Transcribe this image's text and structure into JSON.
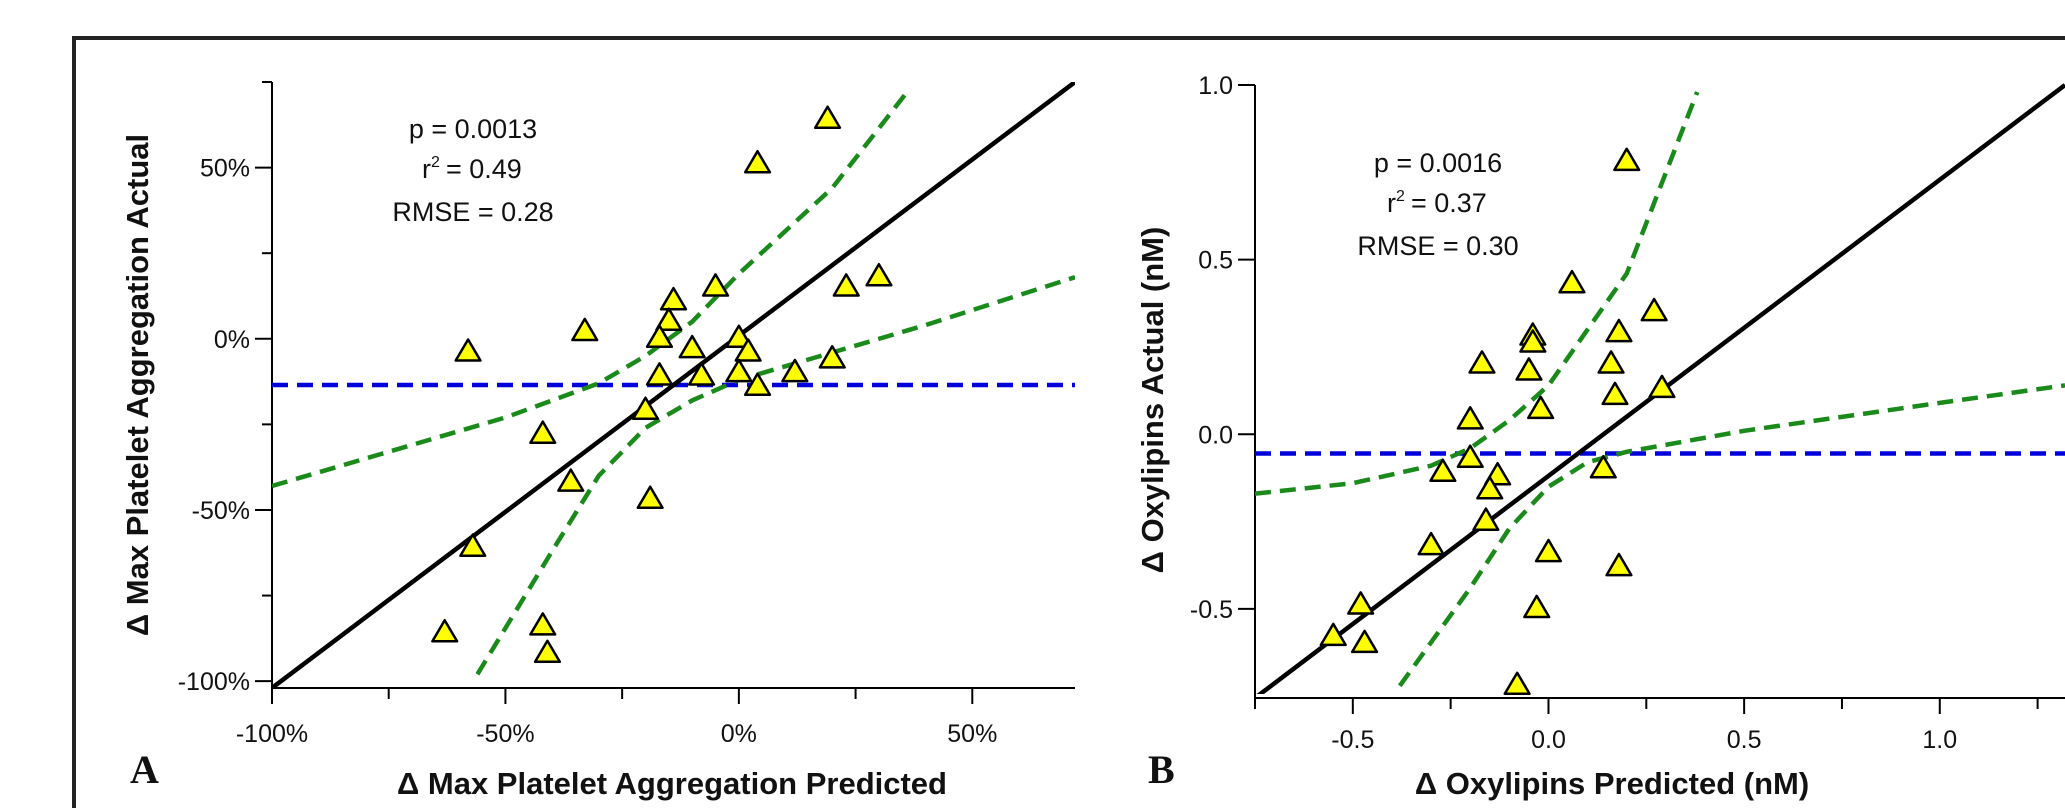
{
  "panels": [
    {
      "label": "A"
    },
    {
      "label": "B"
    }
  ],
  "chart_data": [
    {
      "type": "scatter",
      "panel": "A",
      "xlabel": "Δ Max Platelet Aggregation Predicted",
      "ylabel": "Δ Max Platelet Aggregation Actual",
      "xlim": [
        -1.0,
        0.72
      ],
      "ylim": [
        -1.02,
        0.75
      ],
      "x_ticks": [
        {
          "value": -1.0,
          "label": "-100%"
        },
        {
          "value": -0.5,
          "label": "-50%"
        },
        {
          "value": 0.0,
          "label": "0%"
        },
        {
          "value": 0.5,
          "label": "50%"
        }
      ],
      "y_ticks": [
        {
          "value": -1.0,
          "label": "-100%"
        },
        {
          "value": -0.5,
          "label": "-50%"
        },
        {
          "value": 0.0,
          "label": "0%"
        },
        {
          "value": 0.5,
          "label": "50%"
        }
      ],
      "annotations": {
        "p": "p = 0.0013",
        "r2_value": "= 0.49",
        "rmse": "RMSE = 0.28"
      },
      "series": [
        {
          "marker": "triangle",
          "color": "#ffff00",
          "points": [
            [
              0.19,
              0.64
            ],
            [
              0.04,
              0.51
            ],
            [
              0.3,
              0.18
            ],
            [
              0.23,
              0.15
            ],
            [
              -0.05,
              0.15
            ],
            [
              -0.14,
              0.11
            ],
            [
              -0.15,
              0.05
            ],
            [
              -0.33,
              0.02
            ],
            [
              -0.17,
              0.0
            ],
            [
              0.0,
              0.0
            ],
            [
              -0.1,
              -0.03
            ],
            [
              -0.58,
              -0.04
            ],
            [
              0.02,
              -0.04
            ],
            [
              0.2,
              -0.06
            ],
            [
              0.12,
              -0.1
            ],
            [
              -0.17,
              -0.11
            ],
            [
              0.0,
              -0.1
            ],
            [
              -0.08,
              -0.11
            ],
            [
              0.04,
              -0.14
            ],
            [
              -0.2,
              -0.21
            ],
            [
              -0.42,
              -0.28
            ],
            [
              -0.36,
              -0.42
            ],
            [
              -0.19,
              -0.47
            ],
            [
              -0.57,
              -0.61
            ],
            [
              -0.42,
              -0.84
            ],
            [
              -0.63,
              -0.86
            ],
            [
              -0.41,
              -0.92
            ]
          ]
        }
      ],
      "lines": {
        "fit": {
          "color": "#000000",
          "style": "solid",
          "points": [
            [
              -1.0,
              -1.02
            ],
            [
              0.72,
              0.75
            ]
          ]
        },
        "mean": {
          "color": "#0000dd",
          "style": "dashed",
          "y": -0.135
        },
        "ci_upper": {
          "color": "#1a8a1a",
          "style": "dashed",
          "points": [
            [
              -1.0,
              -0.43
            ],
            [
              -0.5,
              -0.23
            ],
            [
              -0.3,
              -0.13
            ],
            [
              -0.2,
              -0.05
            ],
            [
              -0.1,
              0.05
            ],
            [
              0.0,
              0.19
            ],
            [
              0.2,
              0.44
            ],
            [
              0.36,
              0.72
            ]
          ]
        },
        "ci_lower": {
          "color": "#1a8a1a",
          "style": "dashed",
          "points": [
            [
              -0.56,
              -0.98
            ],
            [
              -0.4,
              -0.62
            ],
            [
              -0.3,
              -0.4
            ],
            [
              -0.2,
              -0.26
            ],
            [
              -0.1,
              -0.18
            ],
            [
              0.0,
              -0.12
            ],
            [
              0.2,
              -0.04
            ],
            [
              0.4,
              0.04
            ],
            [
              0.72,
              0.18
            ]
          ]
        }
      }
    },
    {
      "type": "scatter",
      "panel": "B",
      "xlabel": "Δ Oxylipins Predicted (nM)",
      "ylabel": "Δ Oxylipins Actual (nM)",
      "xlim": [
        -0.75,
        1.32
      ],
      "ylim": [
        -0.755,
        1.0
      ],
      "x_ticks": [
        {
          "value": -0.5,
          "label": "-0.5"
        },
        {
          "value": 0.0,
          "label": "0.0"
        },
        {
          "value": 0.5,
          "label": "0.5"
        },
        {
          "value": 1.0,
          "label": "1.0"
        }
      ],
      "y_ticks": [
        {
          "value": -0.5,
          "label": "-0.5"
        },
        {
          "value": 0.0,
          "label": "0.0"
        },
        {
          "value": 0.5,
          "label": "0.5"
        },
        {
          "value": 1.0,
          "label": "1.0"
        }
      ],
      "annotations": {
        "p": "p = 0.0016",
        "r2_value": "= 0.37",
        "rmse": "RMSE = 0.30"
      },
      "series": [
        {
          "marker": "triangle",
          "color": "#ffff00",
          "points": [
            [
              0.2,
              0.78
            ],
            [
              0.06,
              0.43
            ],
            [
              0.27,
              0.35
            ],
            [
              -0.04,
              0.28
            ],
            [
              0.18,
              0.29
            ],
            [
              -0.04,
              0.26
            ],
            [
              -0.17,
              0.2
            ],
            [
              0.16,
              0.2
            ],
            [
              -0.05,
              0.18
            ],
            [
              0.29,
              0.13
            ],
            [
              0.17,
              0.11
            ],
            [
              -0.02,
              0.07
            ],
            [
              -0.2,
              0.04
            ],
            [
              -0.2,
              -0.07
            ],
            [
              -0.27,
              -0.11
            ],
            [
              0.14,
              -0.1
            ],
            [
              -0.13,
              -0.12
            ],
            [
              -0.15,
              -0.16
            ],
            [
              -0.16,
              -0.25
            ],
            [
              -0.3,
              -0.32
            ],
            [
              0.0,
              -0.34
            ],
            [
              0.18,
              -0.38
            ],
            [
              -0.48,
              -0.49
            ],
            [
              -0.03,
              -0.5
            ],
            [
              -0.55,
              -0.58
            ],
            [
              -0.47,
              -0.6
            ],
            [
              -0.08,
              -0.72
            ]
          ]
        }
      ],
      "lines": {
        "fit": {
          "color": "#000000",
          "style": "solid",
          "points": [
            [
              -0.75,
              -0.755
            ],
            [
              1.32,
              1.0
            ]
          ]
        },
        "mean": {
          "color": "#0000dd",
          "style": "dashed",
          "y": -0.055
        },
        "ci_upper": {
          "color": "#1a8a1a",
          "style": "dashed",
          "points": [
            [
              -0.75,
              -0.17
            ],
            [
              -0.5,
              -0.14
            ],
            [
              -0.3,
              -0.09
            ],
            [
              -0.2,
              -0.04
            ],
            [
              -0.1,
              0.04
            ],
            [
              0.0,
              0.14
            ],
            [
              0.2,
              0.46
            ],
            [
              0.38,
              0.98
            ]
          ]
        },
        "ci_lower": {
          "color": "#1a8a1a",
          "style": "dashed",
          "points": [
            [
              -0.38,
              -0.72
            ],
            [
              -0.2,
              -0.44
            ],
            [
              -0.1,
              -0.27
            ],
            [
              0.0,
              -0.15
            ],
            [
              0.1,
              -0.08
            ],
            [
              0.2,
              -0.05
            ],
            [
              0.5,
              0.01
            ],
            [
              1.0,
              0.09
            ],
            [
              1.32,
              0.14
            ]
          ]
        }
      }
    }
  ]
}
